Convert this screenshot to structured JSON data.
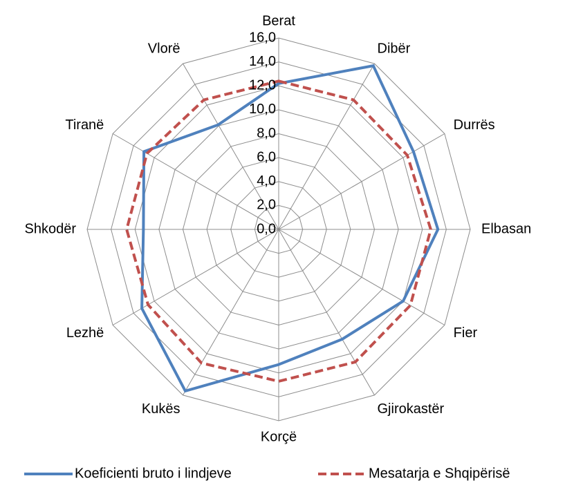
{
  "chart_data": {
    "type": "radar",
    "categories": [
      "Berat",
      "Dibër",
      "Durrës",
      "Elbasan",
      "Fier",
      "Gjirokastër",
      "Korçë",
      "Kukës",
      "Lezhë",
      "Shkodër",
      "Tiranë",
      "Vlorë"
    ],
    "series": [
      {
        "name": "Koeficienti bruto i lindjeve",
        "color": "#4f81bd",
        "dash": "solid",
        "values": [
          12.2,
          15.8,
          13.0,
          13.3,
          12.0,
          10.6,
          11.3,
          15.6,
          13.2,
          11.3,
          13.0,
          10.1
        ]
      },
      {
        "name": "Mesatarja e Shqipërisë",
        "color": "#c0504d",
        "dash": "dashed",
        "values": [
          12.4,
          12.5,
          12.4,
          12.7,
          12.7,
          12.8,
          12.7,
          12.9,
          12.6,
          12.7,
          12.7,
          12.5
        ]
      }
    ],
    "ylim": [
      0,
      16
    ],
    "yticks": [
      {
        "value": 0,
        "label": "0,0"
      },
      {
        "value": 2,
        "label": "2,0"
      },
      {
        "value": 4,
        "label": "4,0"
      },
      {
        "value": 6,
        "label": "6,0"
      },
      {
        "value": 8,
        "label": "8,0"
      },
      {
        "value": 10,
        "label": "10,0"
      },
      {
        "value": 12,
        "label": "12,0"
      },
      {
        "value": 14,
        "label": "14,0"
      },
      {
        "value": 16,
        "label": "16,0"
      }
    ],
    "grid": true,
    "legend": "bottom"
  }
}
